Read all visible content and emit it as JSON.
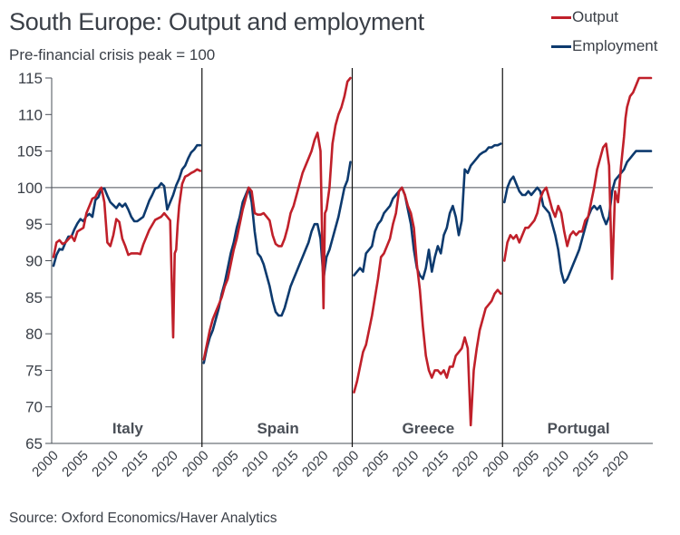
{
  "colors": {
    "output": "#c0202a",
    "employment": "#0d3a6e",
    "text": "#3a3f47",
    "axis": "#4a4f57"
  },
  "chart_data": {
    "type": "line",
    "title": "South Europe: Output and employment",
    "subtitle": "Pre-financial crisis peak = 100",
    "source": "Source: Oxford Economics/Haver Analytics",
    "ylabel": "",
    "ylim": [
      65,
      115
    ],
    "yticks": [
      "115",
      "110",
      "105",
      "100",
      "95",
      "90",
      "85",
      "80",
      "75",
      "70",
      "65"
    ],
    "reference_line": 100,
    "xlim": [
      2000,
      2024.5
    ],
    "xticks": [
      "2000",
      "2005",
      "2010",
      "2015",
      "2020"
    ],
    "legend": {
      "placement": "top-right",
      "entries": [
        "Output",
        "Employment"
      ]
    },
    "panels": [
      {
        "name": "Italy",
        "series": [
          {
            "name": "Output",
            "x": [
              2000,
              2000.5,
              2001,
              2001.5,
              2002,
              2003,
              2003.5,
              2004,
              2005,
              2005.5,
              2006,
              2006.5,
              2007,
              2007.5,
              2008,
              2008.5,
              2009,
              2009.5,
              2010,
              2010.5,
              2011,
              2011.5,
              2012,
              2012.5,
              2013,
              2013.5,
              2014,
              2014.5,
              2015,
              2016,
              2017,
              2018,
              2018.5,
              2019,
              2019.5,
              2020,
              2020.25,
              2020.5,
              2020.75,
              2021,
              2021.5,
              2022,
              2022.5,
              2023,
              2023.5,
              2024,
              2024.5
            ],
            "y": [
              90.5,
              92.5,
              92.8,
              92.3,
              92.5,
              93.4,
              92.7,
              94.0,
              94.5,
              96.5,
              97.5,
              98.5,
              98.7,
              99.5,
              100.0,
              98.0,
              92.5,
              92.0,
              93.5,
              95.7,
              95.3,
              93.0,
              92.0,
              90.8,
              91.0,
              91.0,
              91.0,
              90.9,
              92.2,
              94.2,
              95.6,
              96.0,
              96.5,
              96.0,
              95.5,
              79.5,
              91.0,
              91.5,
              95.0,
              97.5,
              100.5,
              101.5,
              101.7,
              102.0,
              102.2,
              102.5,
              102.3
            ]
          },
          {
            "name": "Employment",
            "x": [
              2000,
              2000.5,
              2001,
              2001.5,
              2002,
              2002.5,
              2003,
              2003.5,
              2004,
              2004.5,
              2005,
              2005.5,
              2006,
              2006.5,
              2007,
              2007.5,
              2008,
              2008.5,
              2009,
              2009.5,
              2010,
              2010.5,
              2011,
              2011.5,
              2012,
              2012.5,
              2013,
              2013.5,
              2014,
              2014.5,
              2015,
              2015.5,
              2016,
              2016.5,
              2017,
              2017.5,
              2018,
              2018.5,
              2019,
              2019.5,
              2020,
              2020.5,
              2021,
              2021.5,
              2022,
              2022.5,
              2023,
              2023.5,
              2024,
              2024.5
            ],
            "y": [
              89.3,
              90.8,
              91.6,
              91.5,
              92.5,
              93.3,
              93.3,
              94.3,
              95.1,
              95.7,
              95.4,
              96.1,
              96.4,
              96.0,
              98.3,
              98.7,
              99.8,
              99.9,
              98.9,
              98.0,
              97.6,
              97.2,
              97.8,
              97.4,
              97.8,
              97.0,
              96.0,
              95.4,
              95.4,
              95.7,
              96.0,
              97.1,
              98.2,
              99.0,
              99.9,
              100.0,
              100.6,
              100.2,
              97.0,
              98.0,
              99.0,
              100.3,
              101.2,
              102.5,
              103.0,
              104.0,
              104.8,
              105.2,
              105.8,
              105.8
            ]
          }
        ]
      },
      {
        "name": "Spain",
        "series": [
          {
            "name": "Output",
            "x": [
              2000,
              2000.5,
              2001,
              2001.5,
              2002,
              2002.5,
              2003,
              2003.5,
              2004,
              2004.5,
              2005,
              2005.5,
              2006,
              2006.5,
              2007,
              2007.5,
              2008,
              2008.5,
              2009,
              2009.5,
              2010,
              2010.5,
              2011,
              2011.5,
              2012,
              2012.5,
              2013,
              2013.5,
              2014,
              2014.5,
              2015,
              2015.5,
              2016,
              2016.5,
              2017,
              2017.5,
              2018,
              2018.5,
              2019,
              2019.5,
              2020,
              2020.25,
              2020.5,
              2021,
              2021.5,
              2022,
              2022.5,
              2023,
              2023.5,
              2024,
              2024.5
            ],
            "y": [
              76.5,
              78.5,
              80.5,
              82.0,
              83.0,
              84.0,
              85.0,
              86.5,
              87.5,
              89.5,
              91.5,
              93.0,
              95.0,
              97.0,
              98.5,
              100.0,
              99.5,
              96.5,
              96.3,
              96.3,
              96.5,
              96.0,
              95.5,
              93.5,
              92.3,
              92.0,
              92.0,
              93.0,
              94.5,
              96.5,
              97.5,
              99.0,
              100.5,
              102.0,
              103.0,
              104.0,
              105.0,
              106.5,
              107.5,
              105.0,
              83.5,
              96.5,
              97.0,
              100.0,
              106.0,
              108.5,
              110.0,
              111.0,
              112.5,
              114.5,
              115.0
            ]
          },
          {
            "name": "Employment",
            "x": [
              2000,
              2000.5,
              2001,
              2001.5,
              2002,
              2002.5,
              2003,
              2003.5,
              2004,
              2004.5,
              2005,
              2005.5,
              2006,
              2006.5,
              2007,
              2007.5,
              2008,
              2008.5,
              2009,
              2009.5,
              2010,
              2010.5,
              2011,
              2011.5,
              2012,
              2012.5,
              2013,
              2013.5,
              2014,
              2014.5,
              2015,
              2015.5,
              2016,
              2016.5,
              2017,
              2017.5,
              2018,
              2018.5,
              2019,
              2019.5,
              2020,
              2020.25,
              2020.5,
              2021,
              2021.5,
              2022,
              2022.5,
              2023,
              2023.5,
              2024,
              2024.5
            ],
            "y": [
              76.0,
              78.0,
              79.5,
              80.5,
              82.0,
              83.5,
              85.5,
              87.0,
              89.0,
              91.0,
              92.5,
              94.5,
              96.0,
              98.0,
              99.0,
              100.0,
              98.0,
              94.0,
              91.0,
              90.5,
              89.5,
              88.0,
              86.5,
              84.5,
              83.0,
              82.5,
              82.5,
              83.5,
              85.0,
              86.5,
              87.5,
              88.5,
              89.5,
              90.5,
              91.5,
              92.5,
              94.0,
              95.0,
              95.0,
              93.0,
              87.5,
              89.0,
              90.5,
              91.5,
              93.0,
              94.5,
              96.0,
              98.0,
              100.0,
              101.0,
              103.5
            ]
          }
        ]
      },
      {
        "name": "Greece",
        "series": [
          {
            "name": "Output",
            "x": [
              2000,
              2000.5,
              2001,
              2001.5,
              2002,
              2002.5,
              2003,
              2003.5,
              2004,
              2004.5,
              2005,
              2005.5,
              2006,
              2006.5,
              2007,
              2007.5,
              2008,
              2008.5,
              2009,
              2009.5,
              2010,
              2010.5,
              2011,
              2011.5,
              2012,
              2012.5,
              2013,
              2013.5,
              2014,
              2014.5,
              2015,
              2015.5,
              2016,
              2016.5,
              2017,
              2017.5,
              2018,
              2018.5,
              2019,
              2019.5,
              2020,
              2020.5,
              2021,
              2021.5,
              2022,
              2022.5,
              2023,
              2023.5,
              2024,
              2024.5
            ],
            "y": [
              72.0,
              73.5,
              75.5,
              77.5,
              78.5,
              80.5,
              82.5,
              85.0,
              87.5,
              90.5,
              91.0,
              92.0,
              93.0,
              95.0,
              96.5,
              99.5,
              100.0,
              99.0,
              97.5,
              96.5,
              94.5,
              89.5,
              86.0,
              81.0,
              77.0,
              75.0,
              74.0,
              75.0,
              75.0,
              74.5,
              75.0,
              74.0,
              75.5,
              75.5,
              77.0,
              77.5,
              78.0,
              79.5,
              78.0,
              67.5,
              75.0,
              78.0,
              80.5,
              82.0,
              83.5,
              84.0,
              84.5,
              85.5,
              86.0,
              85.5
            ]
          },
          {
            "name": "Employment",
            "x": [
              2000,
              2000.5,
              2001,
              2001.5,
              2002,
              2002.5,
              2003,
              2003.5,
              2004,
              2004.5,
              2005,
              2005.5,
              2006,
              2006.5,
              2007,
              2007.5,
              2008,
              2008.5,
              2009,
              2009.5,
              2010,
              2010.5,
              2011,
              2011.5,
              2012,
              2012.5,
              2013,
              2013.5,
              2014,
              2014.5,
              2015,
              2015.5,
              2016,
              2016.5,
              2017,
              2017.5,
              2018,
              2018.5,
              2019,
              2019.5,
              2020,
              2020.5,
              2021,
              2021.5,
              2022,
              2022.5,
              2023,
              2023.5,
              2024,
              2024.5
            ],
            "y": [
              88.0,
              88.5,
              89.0,
              88.5,
              91.0,
              91.5,
              92.0,
              94.0,
              95.0,
              95.5,
              96.5,
              97.0,
              97.5,
              98.5,
              99.0,
              99.5,
              100.0,
              99.0,
              97.0,
              95.0,
              91.5,
              89.0,
              88.0,
              87.5,
              89.0,
              91.5,
              88.5,
              90.5,
              92.0,
              91.0,
              93.5,
              94.5,
              96.5,
              97.5,
              96.0,
              93.5,
              95.5,
              102.5,
              102.0,
              103.0,
              103.5,
              104.0,
              104.5,
              104.8,
              105.0,
              105.5,
              105.5,
              105.8,
              105.8,
              106.0
            ]
          }
        ]
      },
      {
        "name": "Portugal",
        "series": [
          {
            "name": "Output",
            "x": [
              2000,
              2000.5,
              2001,
              2001.5,
              2002,
              2002.5,
              2003,
              2003.5,
              2004,
              2004.5,
              2005,
              2005.5,
              2006,
              2006.5,
              2007,
              2007.5,
              2008,
              2008.5,
              2009,
              2009.5,
              2010,
              2010.5,
              2011,
              2011.5,
              2012,
              2012.5,
              2013,
              2013.5,
              2014,
              2014.5,
              2015,
              2015.5,
              2016,
              2016.5,
              2017,
              2017.5,
              2018,
              2018.5,
              2019,
              2019.5,
              2020,
              2020.25,
              2020.5,
              2021,
              2021.5,
              2022,
              2022.5,
              2023,
              2023.5,
              2024,
              2024.5
            ],
            "y": [
              90.0,
              92.5,
              93.5,
              93.0,
              93.5,
              92.5,
              93.5,
              94.5,
              94.5,
              95.0,
              95.5,
              96.5,
              98.5,
              99.5,
              100.0,
              98.5,
              97.0,
              96.0,
              97.5,
              96.5,
              94.0,
              92.0,
              93.5,
              94.0,
              93.5,
              94.0,
              94.0,
              95.5,
              96.0,
              98.0,
              100.0,
              102.5,
              104.0,
              105.5,
              106.0,
              103.0,
              87.5,
              99.5,
              98.0,
              103.0,
              107.0,
              109.5,
              111.0,
              112.5,
              113.0,
              114.0,
              115.0,
              115.0,
              115.0,
              115.0,
              115.0
            ]
          },
          {
            "name": "Employment",
            "x": [
              2000,
              2000.5,
              2001,
              2001.5,
              2002,
              2002.5,
              2003,
              2003.5,
              2004,
              2004.5,
              2005,
              2005.5,
              2006,
              2006.5,
              2007,
              2007.5,
              2008,
              2008.5,
              2009,
              2009.5,
              2010,
              2010.5,
              2011,
              2011.5,
              2012,
              2012.5,
              2013,
              2013.5,
              2014,
              2014.5,
              2015,
              2015.5,
              2016,
              2016.5,
              2017,
              2017.5,
              2018,
              2018.5,
              2019,
              2019.5,
              2020,
              2020.25,
              2020.5,
              2021,
              2021.5,
              2022,
              2022.5,
              2023,
              2023.5,
              2024,
              2024.5
            ],
            "y": [
              98.0,
              100.0,
              101.0,
              101.5,
              100.5,
              99.5,
              99.0,
              99.0,
              99.5,
              99.0,
              99.5,
              100.0,
              99.5,
              97.5,
              97.0,
              96.5,
              95.0,
              93.5,
              91.5,
              88.5,
              87.0,
              87.5,
              88.5,
              89.5,
              90.5,
              91.5,
              93.0,
              94.5,
              96.0,
              97.0,
              97.5,
              97.0,
              97.5,
              96.0,
              95.0,
              96.0,
              99.5,
              101.0,
              101.5,
              102.0,
              102.5,
              103.0,
              103.5,
              104.0,
              104.5,
              105.0,
              105.0,
              105.0,
              105.0,
              105.0,
              105.0
            ]
          }
        ]
      }
    ]
  }
}
